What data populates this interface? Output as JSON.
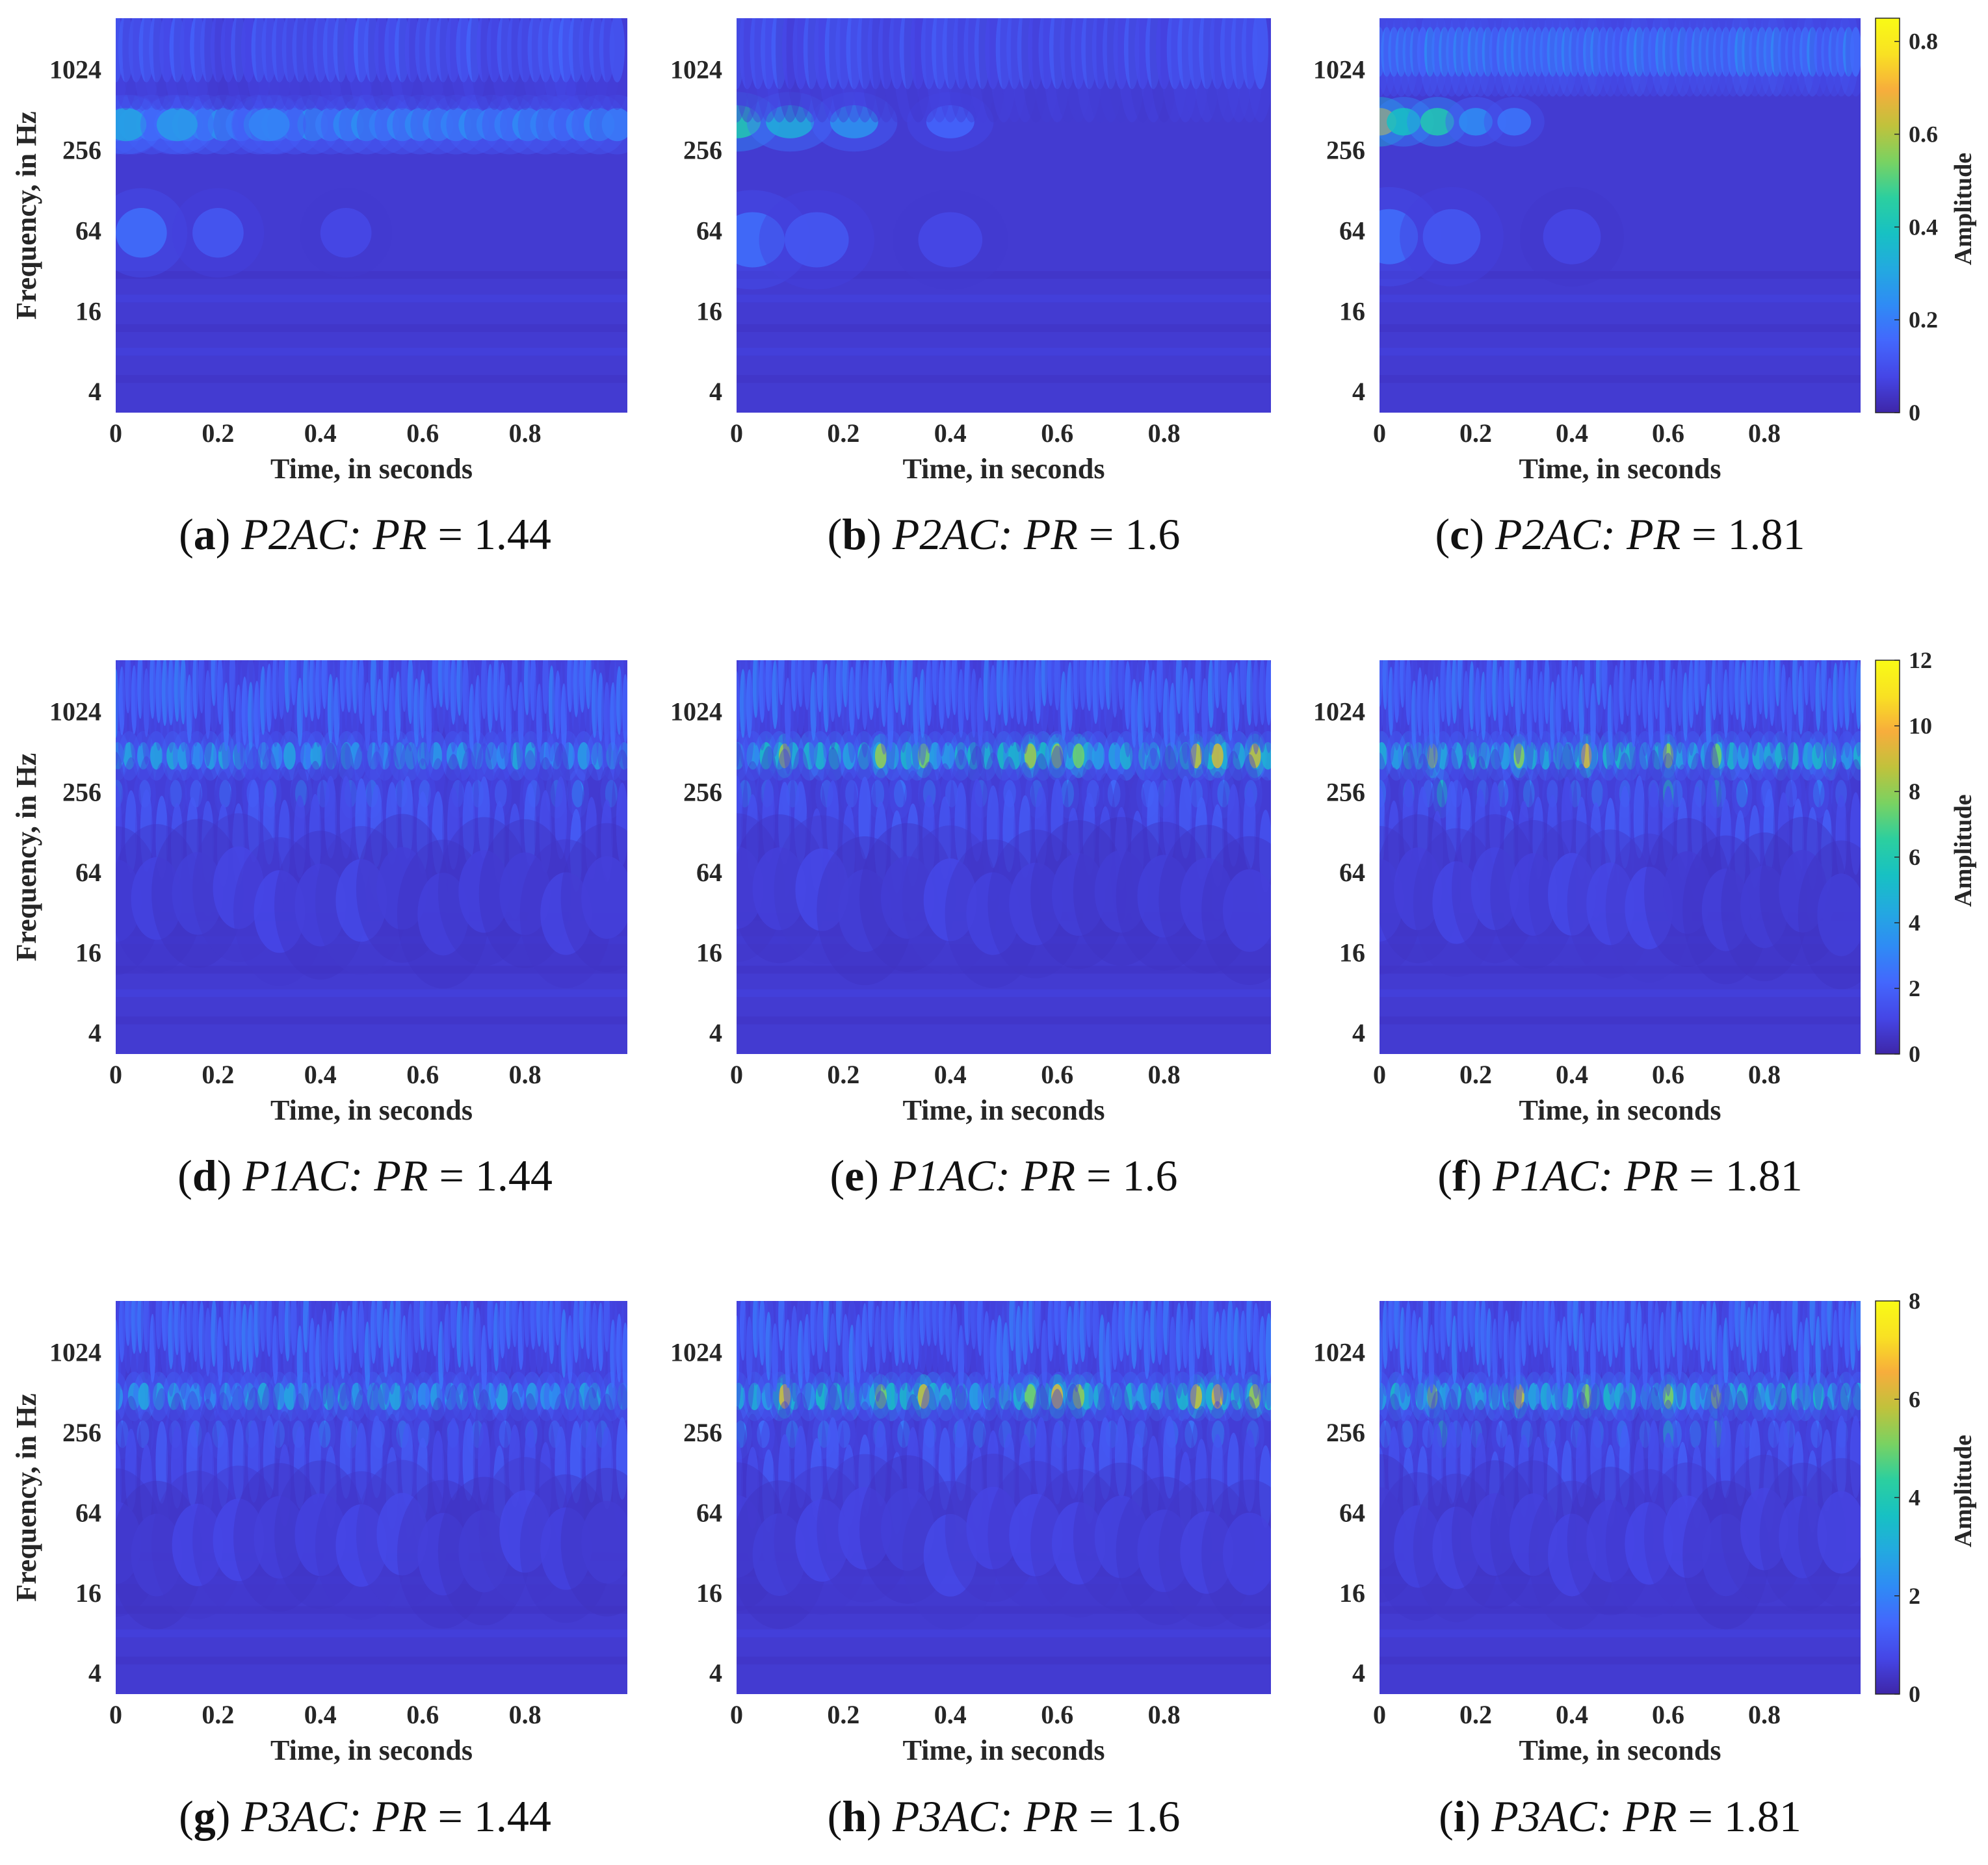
{
  "colors": {
    "low": "#3b2fb8",
    "mid": "#2d9cf0",
    "high": "#fbe61c",
    "colormap": [
      "#3e26a8",
      "#4546e6",
      "#4367fd",
      "#2f8bf5",
      "#23a9e0",
      "#17c1c3",
      "#2ccf9f",
      "#79d262",
      "#c0c23c",
      "#f7ad3c",
      "#f9e123",
      "#f9fb15"
    ]
  },
  "chart_data": [
    {
      "id": "a",
      "type": "heatmap",
      "caption_letter": "a",
      "caption_label": "P2AC:",
      "caption_var": "PR",
      "caption_eq": " = 1.44",
      "xlabel": "Time, in seconds",
      "ylabel": "Frequency, in Hz",
      "x_ticks": [
        "0",
        "0.2",
        "0.4",
        "0.6",
        "0.8"
      ],
      "y_ticks": [
        "1024",
        "256",
        "64",
        "16",
        "4"
      ],
      "x_range": [
        0,
        1
      ],
      "y_scale": "log2",
      "y_range": [
        2.8,
        2500
      ],
      "colorbar": null,
      "scale_max": 0.85,
      "pattern": "p2_144"
    },
    {
      "id": "b",
      "type": "heatmap",
      "caption_letter": "b",
      "caption_label": "P2AC:",
      "caption_var": "PR",
      "caption_eq": " = 1.6",
      "xlabel": "Time, in seconds",
      "ylabel": "",
      "x_ticks": [
        "0",
        "0.2",
        "0.4",
        "0.6",
        "0.8"
      ],
      "y_ticks": [
        "1024",
        "256",
        "64",
        "16",
        "4"
      ],
      "x_range": [
        0,
        1
      ],
      "y_scale": "log2",
      "y_range": [
        2.8,
        2500
      ],
      "colorbar": null,
      "scale_max": 0.85,
      "pattern": "p2_16"
    },
    {
      "id": "c",
      "type": "heatmap",
      "caption_letter": "c",
      "caption_label": "P2AC:",
      "caption_var": "PR",
      "caption_eq": " = 1.81",
      "xlabel": "Time, in seconds",
      "ylabel": "",
      "x_ticks": [
        "0",
        "0.2",
        "0.4",
        "0.6",
        "0.8"
      ],
      "y_ticks": [
        "1024",
        "256",
        "64",
        "16",
        "4"
      ],
      "x_range": [
        0,
        1
      ],
      "y_scale": "log2",
      "y_range": [
        2.8,
        2500
      ],
      "colorbar": {
        "label": "Amplitude",
        "ticks": [
          "0",
          "0.2",
          "0.4",
          "0.6",
          "0.8"
        ],
        "max": 0.85
      },
      "scale_max": 0.85,
      "pattern": "p2_181"
    },
    {
      "id": "d",
      "type": "heatmap",
      "caption_letter": "d",
      "caption_label": "P1AC:",
      "caption_var": "PR",
      "caption_eq": " = 1.44",
      "xlabel": "Time, in seconds",
      "ylabel": "Frequency, in Hz",
      "x_ticks": [
        "0",
        "0.2",
        "0.4",
        "0.6",
        "0.8"
      ],
      "y_ticks": [
        "1024",
        "256",
        "64",
        "16",
        "4"
      ],
      "x_range": [
        0,
        1
      ],
      "y_scale": "log2",
      "y_range": [
        2.8,
        2500
      ],
      "colorbar": null,
      "scale_max": 12,
      "pattern": "p1_144"
    },
    {
      "id": "e",
      "type": "heatmap",
      "caption_letter": "e",
      "caption_label": "P1AC:",
      "caption_var": "PR",
      "caption_eq": " = 1.6",
      "xlabel": "Time, in seconds",
      "ylabel": "",
      "x_ticks": [
        "0",
        "0.2",
        "0.4",
        "0.6",
        "0.8"
      ],
      "y_ticks": [
        "1024",
        "256",
        "64",
        "16",
        "4"
      ],
      "x_range": [
        0,
        1
      ],
      "y_scale": "log2",
      "y_range": [
        2.8,
        2500
      ],
      "colorbar": null,
      "scale_max": 12,
      "pattern": "p1_16"
    },
    {
      "id": "f",
      "type": "heatmap",
      "caption_letter": "f",
      "caption_label": "P1AC:",
      "caption_var": "PR",
      "caption_eq": " = 1.81",
      "xlabel": "Time, in seconds",
      "ylabel": "",
      "x_ticks": [
        "0",
        "0.2",
        "0.4",
        "0.6",
        "0.8"
      ],
      "y_ticks": [
        "1024",
        "256",
        "64",
        "16",
        "4"
      ],
      "x_range": [
        0,
        1
      ],
      "y_scale": "log2",
      "y_range": [
        2.8,
        2500
      ],
      "colorbar": {
        "label": "Amplitude",
        "ticks": [
          "0",
          "2",
          "4",
          "6",
          "8",
          "10",
          "12"
        ],
        "max": 12
      },
      "scale_max": 12,
      "pattern": "p1_181"
    },
    {
      "id": "g",
      "type": "heatmap",
      "caption_letter": "g",
      "caption_label": "P3AC:",
      "caption_var": "PR",
      "caption_eq": " = 1.44",
      "xlabel": "Time, in seconds",
      "ylabel": "Frequency, in Hz",
      "x_ticks": [
        "0",
        "0.2",
        "0.4",
        "0.6",
        "0.8"
      ],
      "y_ticks": [
        "1024",
        "256",
        "64",
        "16",
        "4"
      ],
      "x_range": [
        0,
        1
      ],
      "y_scale": "log2",
      "y_range": [
        2.8,
        2500
      ],
      "colorbar": null,
      "scale_max": 8,
      "pattern": "p3_144"
    },
    {
      "id": "h",
      "type": "heatmap",
      "caption_letter": "h",
      "caption_label": "P3AC:",
      "caption_var": "PR",
      "caption_eq": " = 1.6",
      "xlabel": "Time, in seconds",
      "ylabel": "",
      "x_ticks": [
        "0",
        "0.2",
        "0.4",
        "0.6",
        "0.8"
      ],
      "y_ticks": [
        "1024",
        "256",
        "64",
        "16",
        "4"
      ],
      "x_range": [
        0,
        1
      ],
      "y_scale": "log2",
      "y_range": [
        2.8,
        2500
      ],
      "colorbar": null,
      "scale_max": 8,
      "pattern": "p3_16"
    },
    {
      "id": "i",
      "type": "heatmap",
      "caption_letter": "i",
      "caption_label": "P3AC:",
      "caption_var": "PR",
      "caption_eq": " = 1.81",
      "xlabel": "Time, in seconds",
      "ylabel": "",
      "x_ticks": [
        "0",
        "0.2",
        "0.4",
        "0.6",
        "0.8"
      ],
      "y_ticks": [
        "1024",
        "256",
        "64",
        "16",
        "4"
      ],
      "x_range": [
        0,
        1
      ],
      "y_scale": "log2",
      "y_range": [
        2.8,
        2500
      ],
      "colorbar": {
        "label": "Amplitude",
        "ticks": [
          "0",
          "2",
          "4",
          "6",
          "8"
        ],
        "max": 8
      },
      "scale_max": 8,
      "pattern": "p3_181"
    }
  ]
}
